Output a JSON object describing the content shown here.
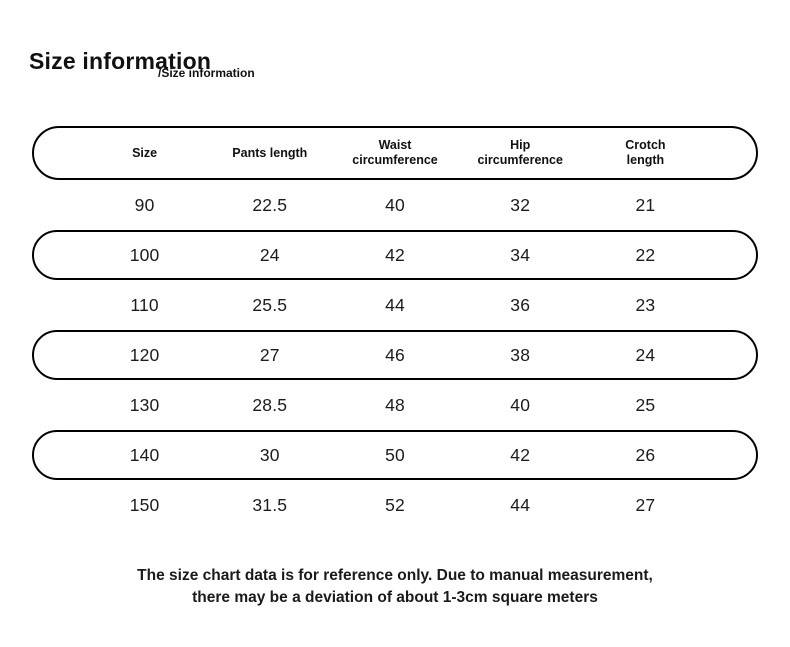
{
  "page": {
    "title": "Size information",
    "subtitle_overlay": "/Size information"
  },
  "table": {
    "headers": [
      "Size",
      "Pants length",
      "Waist\ncircumference",
      "Hip\ncircumference",
      "Crotch\nlength"
    ],
    "rows": [
      {
        "values": [
          "90",
          "22.5",
          "40",
          "32",
          "21"
        ]
      },
      {
        "values": [
          "100",
          "24",
          "42",
          "34",
          "22"
        ]
      },
      {
        "values": [
          "110",
          "25.5",
          "44",
          "36",
          "23"
        ]
      },
      {
        "values": [
          "120",
          "27",
          "46",
          "38",
          "24"
        ]
      },
      {
        "values": [
          "130",
          "28.5",
          "48",
          "40",
          "25"
        ]
      },
      {
        "values": [
          "140",
          "30",
          "50",
          "42",
          "26"
        ]
      },
      {
        "values": [
          "150",
          "31.5",
          "52",
          "44",
          "27"
        ]
      }
    ]
  },
  "footer": {
    "line1": "The size chart data is for reference only. Due to manual measurement,",
    "line2": "there may be a deviation of about 1-3cm square meters"
  },
  "colors": {
    "text": "#111111",
    "border": "#000000",
    "background": "#ffffff"
  },
  "chart_data": {
    "type": "table",
    "title": "Size information",
    "columns": [
      "Size",
      "Pants length",
      "Waist circumference",
      "Hip circumference",
      "Crotch length"
    ],
    "rows": [
      [
        90,
        22.5,
        40,
        32,
        21
      ],
      [
        100,
        24,
        42,
        34,
        22
      ],
      [
        110,
        25.5,
        44,
        36,
        23
      ],
      [
        120,
        27,
        46,
        38,
        24
      ],
      [
        130,
        28.5,
        48,
        40,
        25
      ],
      [
        140,
        30,
        50,
        42,
        26
      ],
      [
        150,
        31.5,
        52,
        44,
        27
      ]
    ],
    "note": "The size chart data is for reference only. Due to manual measurement, there may be a deviation of about 1-3cm square meters"
  }
}
